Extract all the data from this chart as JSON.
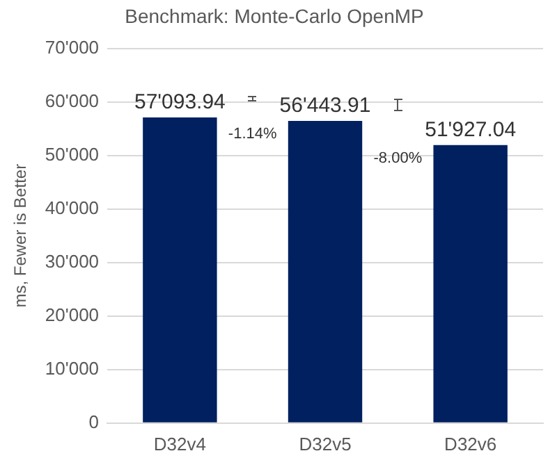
{
  "chart_data": {
    "type": "bar",
    "title": "Benchmark: Monte-Carlo OpenMP",
    "ylabel": "ms, Fewer is Better",
    "categories": [
      "D32v4",
      "D32v5",
      "D32v6"
    ],
    "values": [
      57093.94,
      56443.91,
      51927.04
    ],
    "color": "#002060",
    "value_labels": [
      "57'093.94",
      "56'443.91",
      "51'927.04"
    ],
    "annotations": [
      "-1.14%",
      "-8.00%"
    ],
    "ylim": [
      0,
      70000
    ],
    "yticks": [
      {
        "value": 0,
        "label": "0"
      },
      {
        "value": 10000,
        "label": "10'000"
      },
      {
        "value": 20000,
        "label": "20'000"
      },
      {
        "value": 30000,
        "label": "30'000"
      },
      {
        "value": 40000,
        "label": "40'000"
      },
      {
        "value": 50000,
        "label": "50'000"
      },
      {
        "value": 60000,
        "label": "60'000"
      },
      {
        "value": 70000,
        "label": "70'000"
      }
    ],
    "grid": "y",
    "legend": false
  }
}
